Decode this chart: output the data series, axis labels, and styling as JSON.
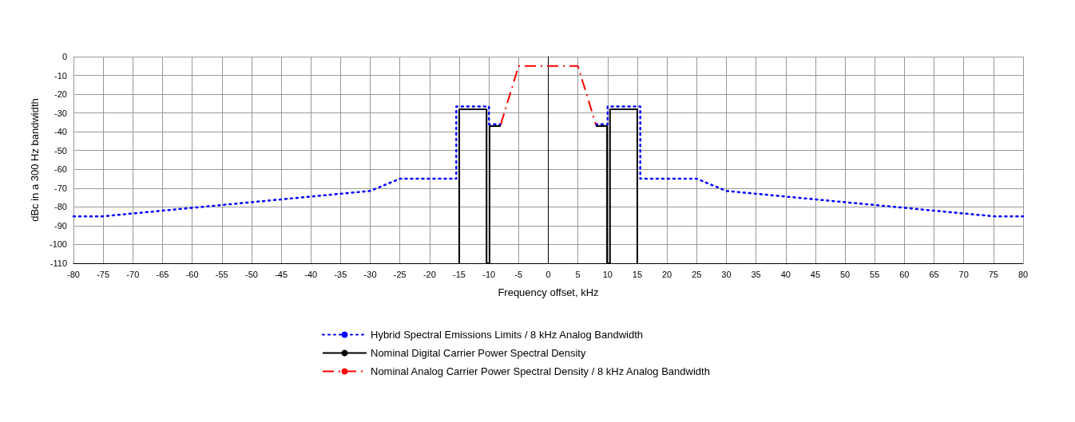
{
  "chart_data": {
    "type": "line",
    "xlabel": "Frequency offset, kHz",
    "ylabel": "dBc in a 300 Hz bandwidth",
    "xlim": [
      -80,
      80
    ],
    "xticks": [
      -80,
      -75,
      -70,
      -65,
      -60,
      -55,
      -50,
      -45,
      -40,
      -35,
      -30,
      -25,
      -20,
      -15,
      -10,
      -5,
      0,
      5,
      10,
      15,
      20,
      25,
      30,
      35,
      40,
      45,
      50,
      55,
      60,
      65,
      70,
      75,
      80
    ],
    "ylim": [
      -110,
      0
    ],
    "yticks": [
      -110,
      -100,
      -90,
      -80,
      -70,
      -60,
      -50,
      -40,
      -30,
      -20,
      -10,
      0
    ],
    "grid": true,
    "legend": "bottom",
    "marker": "none",
    "series": [
      {
        "name": "Hybrid Spectral Emissions Limits / 8 kHz Analog Bandwidth",
        "color": "#0000ff",
        "line_style": "dotted",
        "x": [
          -80,
          -75,
          -30,
          -25,
          -15.5,
          -15.5,
          -10,
          -10,
          -8,
          null,
          8,
          10,
          10,
          15.5,
          15.5,
          25,
          30,
          75,
          80
        ],
        "values": [
          -85,
          -85,
          -71.5,
          -65,
          -65,
          -26.5,
          -26.5,
          -36,
          -36,
          null,
          -36,
          -36,
          -26.5,
          -26.5,
          -65,
          -65,
          -71.5,
          -85,
          -85
        ]
      },
      {
        "name": "Nominal Digital Carrier Power Spectral Density",
        "color": "#000000",
        "line_style": "solid",
        "x": [
          -15,
          -15,
          -10.4,
          -10.4,
          -9.9,
          -9.9,
          -8,
          null,
          8,
          9.9,
          9.9,
          10.4,
          10.4,
          15,
          15
        ],
        "values": [
          -110,
          -28,
          -28,
          -110,
          -110,
          -37,
          -37,
          null,
          -37,
          -37,
          -110,
          -110,
          -28,
          -28,
          -110
        ]
      },
      {
        "name": "Nominal Analog Carrier Power Spectral Density / 8 kHz Analog Bandwidth",
        "color": "#ff0000",
        "line_style": "dashdot",
        "x": [
          -8,
          -5,
          5,
          8
        ],
        "values": [
          -36,
          -5,
          -5,
          -36
        ]
      }
    ]
  }
}
